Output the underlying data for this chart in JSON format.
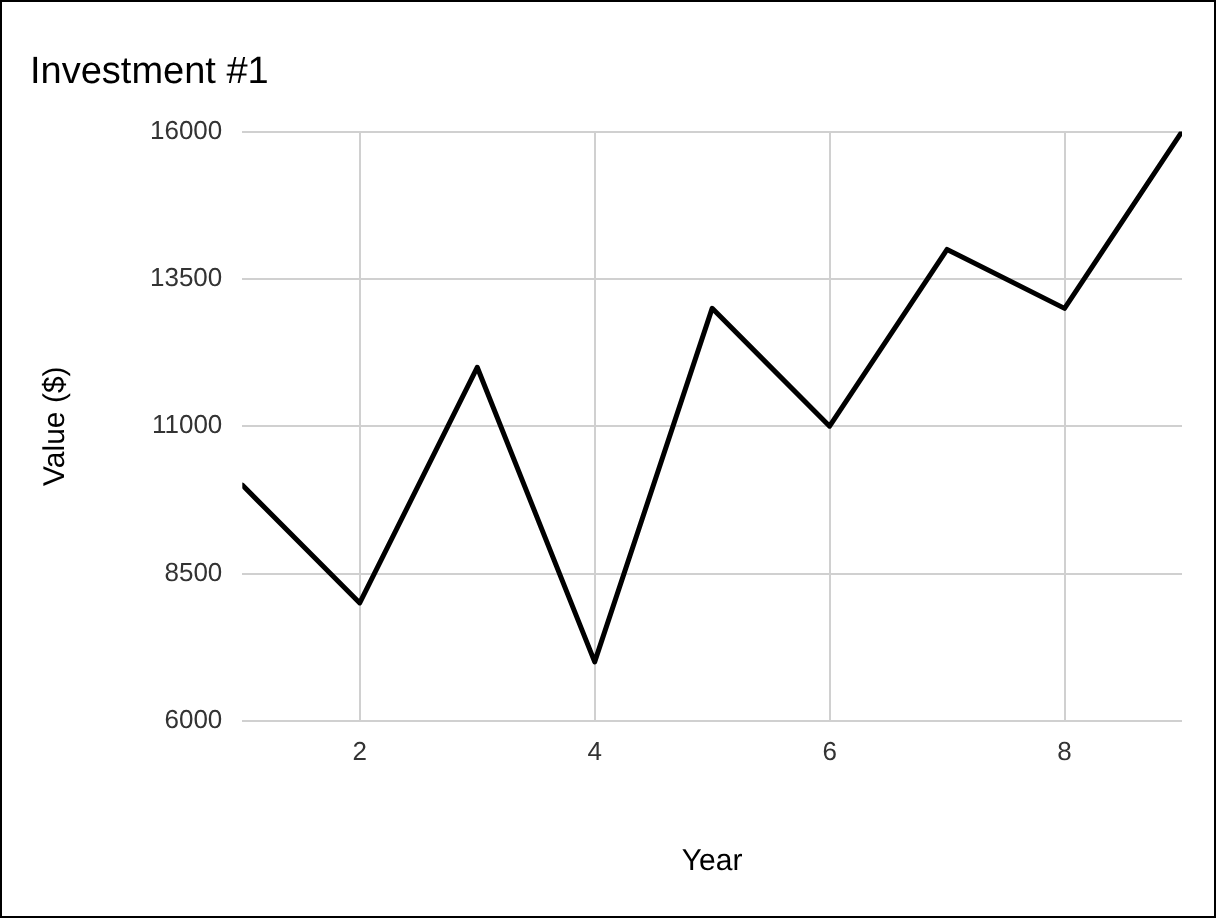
{
  "chart_data": {
    "type": "line",
    "title": "Investment #1",
    "xlabel": "Year",
    "ylabel": "Value ($)",
    "x": [
      1,
      2,
      3,
      4,
      5,
      6,
      7,
      8,
      9
    ],
    "series": [
      {
        "color": "#000000",
        "values": [
          10000,
          8000,
          12000,
          7000,
          13000,
          11000,
          14000,
          13000,
          16000
        ]
      }
    ],
    "xlim": [
      1,
      9
    ],
    "xticks": [
      2,
      4,
      6,
      8
    ],
    "ylim": [
      6000,
      16000
    ],
    "yticks": [
      6000,
      8500,
      11000,
      13500,
      16000
    ],
    "grid": true,
    "legend": false,
    "marker": "none",
    "line_style": "solid"
  }
}
